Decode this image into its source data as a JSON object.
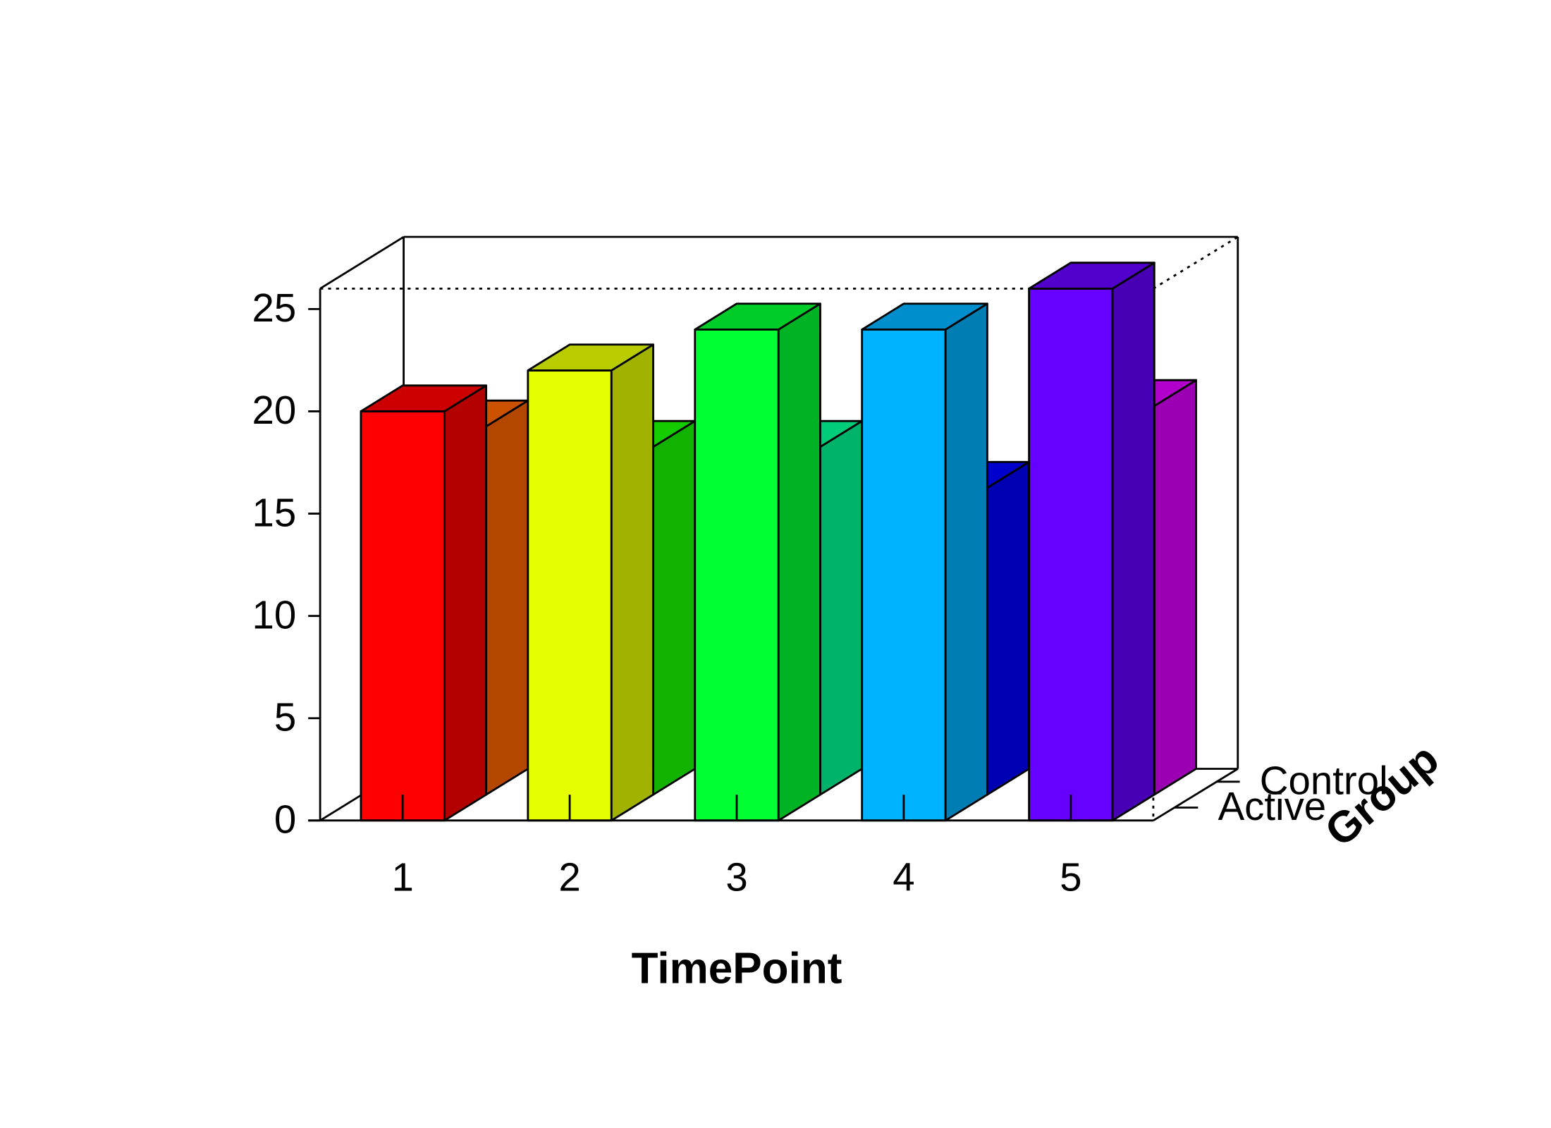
{
  "chart_data": {
    "type": "bar3d",
    "x_label": "TimePoint",
    "z_label": "Group",
    "categories": [
      "1",
      "2",
      "3",
      "4",
      "5"
    ],
    "series": [
      {
        "name": "Active",
        "colors": [
          "#ff0000",
          "#e6ff00",
          "#00ff33",
          "#00b3ff",
          "#6600ff"
        ],
        "values": [
          20,
          22,
          24,
          24,
          26
        ]
      },
      {
        "name": "Control",
        "colors": [
          "#ff6600",
          "#1aff00",
          "#00ff99",
          "#0000ff",
          "#dd00ff"
        ],
        "values": [
          18,
          17,
          17,
          15,
          19
        ]
      }
    ],
    "ylim": [
      0,
      26
    ],
    "yticks": [
      0,
      5,
      10,
      15,
      20,
      25
    ]
  }
}
